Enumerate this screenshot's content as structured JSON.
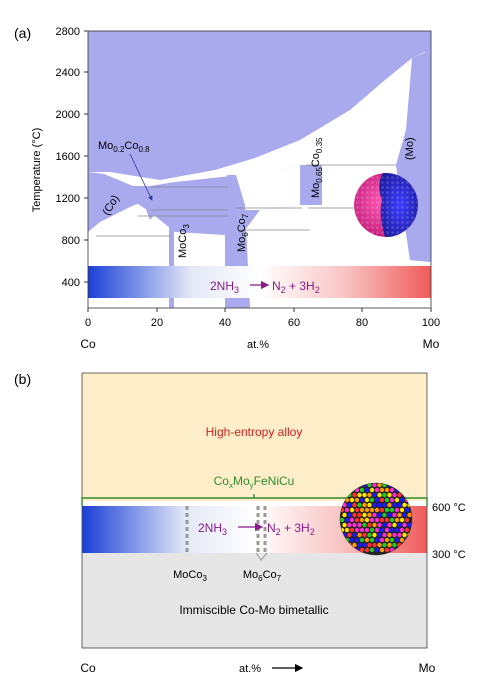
{
  "panel_a": {
    "label": "(a)",
    "y_axis_label": "Temperature (°C)",
    "y_ticks": [
      "2800",
      "2400",
      "2000",
      "1600",
      "1200",
      "800",
      "400"
    ],
    "x_ticks": [
      "0",
      "20",
      "40",
      "60",
      "80",
      "100"
    ],
    "x_left": "Co",
    "x_mid": "at.%",
    "x_right": "Mo",
    "phase_co": "(Co)",
    "phase_mo": "(Mo)",
    "phase_mo02co08_main": "Mo",
    "phase_mo02co08_s1": "0.2",
    "phase_mo02co08_mid": "Co",
    "phase_mo02co08_s2": "0.8",
    "phase_moco3_main": "MoCo",
    "phase_moco3_sub": "3",
    "phase_mo6co7_a": "Mo",
    "phase_mo6co7_s1": "6",
    "phase_mo6co7_b": "Co",
    "phase_mo6co7_s2": "7",
    "phase_mo065_a": "Mo",
    "phase_mo065_s1": "0.65",
    "phase_mo065_b": "Co",
    "phase_mo065_s2": "0.35",
    "reaction_nh3": "2NH",
    "reaction_nh3_sub": "3",
    "reaction_products": "N",
    "reaction_n2_sub": "2",
    "reaction_plus": " + 3H",
    "reaction_h2_sub": "2",
    "colors": {
      "phase_fill": "#a9a9ee",
      "reaction_text": "#8b1a8b",
      "axis": "#333333"
    }
  },
  "panel_b": {
    "label": "(b)",
    "hea_label": "High-entropy alloy",
    "composition_a": "Co",
    "composition_sx": "x",
    "composition_b": "Mo",
    "composition_sy": "y",
    "composition_c": "FeNiCu",
    "temp_600": "600 °C",
    "temp_300": "300 °C",
    "reaction_nh3": "2NH",
    "reaction_nh3_sub": "3",
    "reaction_products": "N",
    "reaction_n2_sub": "2",
    "reaction_plus": " + 3H",
    "reaction_h2_sub": "2",
    "moco3_main": "MoCo",
    "moco3_sub": "3",
    "mo6co7_a": "Mo",
    "mo6co7_s1": "6",
    "mo6co7_b": "Co",
    "mo6co7_s2": "7",
    "immiscible_label": "Immiscible Co-Mo bimetallic",
    "x_left": "Co",
    "x_mid": "at.%",
    "x_right": "Mo",
    "colors": {
      "hea_bg": "#fdeec9",
      "hea_text": "#cc2222",
      "bracket": "#2e8b2e",
      "bottom_bg": "#e6e6e6"
    }
  }
}
